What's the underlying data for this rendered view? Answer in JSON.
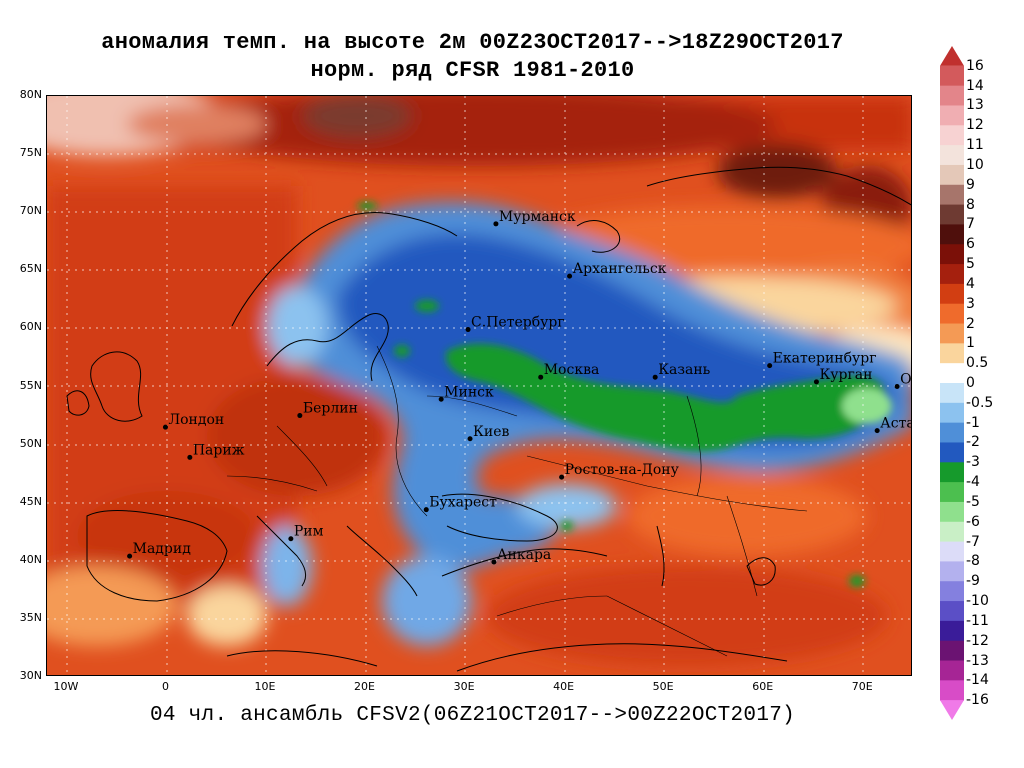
{
  "titles": {
    "line1": "аномалия темп. на высоте 2м 00Z23OCT2017-->18Z29OCT2017",
    "line2": "норм. ряд CFSR 1981-2010",
    "footer": "04 чл. ансамбль CFSV2(06Z21OCT2017-->00Z22OCT2017)"
  },
  "axes": {
    "lat_labels": [
      "80N",
      "75N",
      "70N",
      "65N",
      "60N",
      "55N",
      "50N",
      "45N",
      "40N",
      "35N",
      "30N"
    ],
    "lon_labels": [
      "10W",
      "0",
      "10E",
      "20E",
      "30E",
      "40E",
      "50E",
      "60E",
      "70E"
    ]
  },
  "cities": [
    {
      "name": "Мурманск",
      "lon": 33.1,
      "lat": 69.0
    },
    {
      "name": "Архангельск",
      "lon": 40.5,
      "lat": 64.5
    },
    {
      "name": "С.Петербург",
      "lon": 30.3,
      "lat": 59.9
    },
    {
      "name": "Москва",
      "lon": 37.6,
      "lat": 55.8
    },
    {
      "name": "Казань",
      "lon": 49.1,
      "lat": 55.8
    },
    {
      "name": "Екатеринбург",
      "lon": 60.6,
      "lat": 56.8
    },
    {
      "name": "Курган",
      "lon": 65.3,
      "lat": 55.4
    },
    {
      "name": "Омск",
      "lon": 73.4,
      "lat": 55.0
    },
    {
      "name": "Астана",
      "lon": 71.4,
      "lat": 51.2
    },
    {
      "name": "Минск",
      "lon": 27.6,
      "lat": 53.9
    },
    {
      "name": "Киев",
      "lon": 30.5,
      "lat": 50.5
    },
    {
      "name": "Ростов-на-Дону",
      "lon": 39.7,
      "lat": 47.2
    },
    {
      "name": "Бухарест",
      "lon": 26.1,
      "lat": 44.4
    },
    {
      "name": "Анкара",
      "lon": 32.9,
      "lat": 39.9
    },
    {
      "name": "Рим",
      "lon": 12.5,
      "lat": 41.9
    },
    {
      "name": "Мадрид",
      "lon": -3.7,
      "lat": 40.4
    },
    {
      "name": "Париж",
      "lon": 2.35,
      "lat": 48.9
    },
    {
      "name": "Лондон",
      "lon": -0.1,
      "lat": 51.5
    },
    {
      "name": "Берлин",
      "lon": 13.4,
      "lat": 52.5
    }
  ],
  "colorbar": {
    "labels": [
      "16",
      "14",
      "13",
      "12",
      "11",
      "10",
      "9",
      "8",
      "7",
      "6",
      "5",
      "4",
      "3",
      "2",
      "1",
      "0.5",
      "0",
      "-0.5",
      "-1",
      "-2",
      "-3",
      "-4",
      "-5",
      "-6",
      "-7",
      "-8",
      "-9",
      "-10",
      "-11",
      "-12",
      "-13",
      "-14",
      "-16"
    ],
    "colors": [
      "#c0302e",
      "#d35a5c",
      "#e3858a",
      "#f0aeb2",
      "#f7d2d2",
      "#f3e3dc",
      "#e4c8b8",
      "#a7756b",
      "#6e3a32",
      "#4f0f0c",
      "#7b1008",
      "#a5200e",
      "#d23e12",
      "#ef6b2c",
      "#f49a55",
      "#fad59d",
      "#ffffff",
      "#c8e4f8",
      "#8cc2ef",
      "#4f8fd8",
      "#2259bf",
      "#169a2c",
      "#4cbf4f",
      "#8fe08d",
      "#c9efc6",
      "#dcdcf8",
      "#b3b1ee",
      "#8480df",
      "#5b4fc6",
      "#3a1c99",
      "#6b1372",
      "#a62595",
      "#d84cc7",
      "#f07ae8"
    ]
  },
  "map": {
    "lon_range": [
      -12,
      75
    ],
    "lat_range": [
      30,
      80
    ]
  }
}
